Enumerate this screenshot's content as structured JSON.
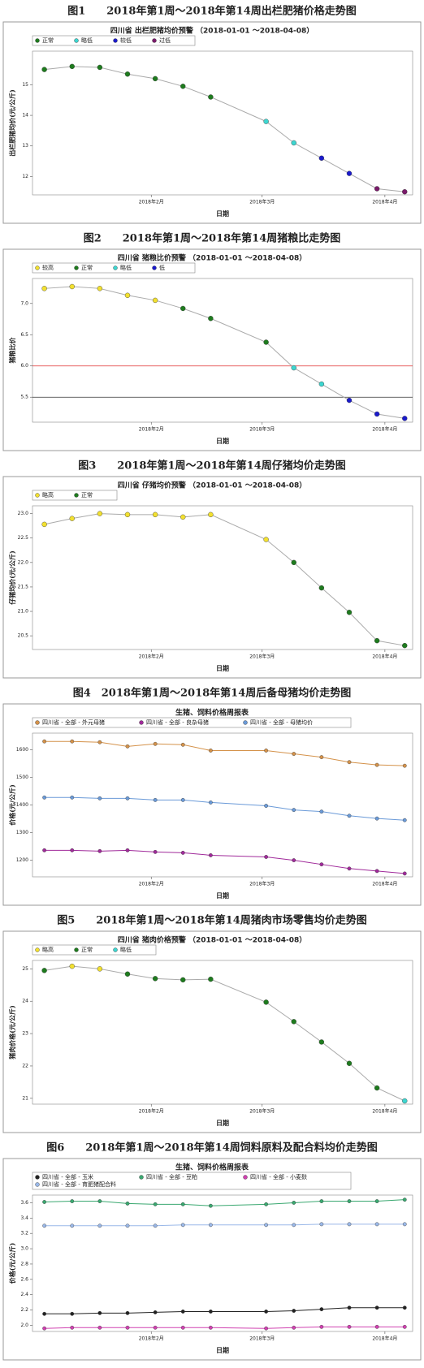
{
  "chart_data": [
    {
      "type": "line",
      "caption": "图1　　2018年第1周～2018年第14周出栏肥猪价格走势图",
      "title": "四川省 出栏肥猪均价预警 （2018-01-01 ～2018-04-08）",
      "y_label": "出栏肥猪均价(元/公斤)",
      "x_label": "日期",
      "x": [
        5,
        12,
        19,
        26,
        33,
        40,
        47,
        61,
        68,
        75,
        82,
        89,
        96
      ],
      "xlim": [
        2,
        98
      ],
      "xticks": [
        {
          "value": 32,
          "label": "2018年2月"
        },
        {
          "value": 60,
          "label": "2018年3月"
        },
        {
          "value": 91,
          "label": "2018年4月"
        }
      ],
      "ylim": [
        11.4,
        16.1
      ],
      "yticks": [
        12,
        13,
        14,
        15
      ],
      "legend": [
        {
          "name": "正常",
          "color": "#1e7b1e"
        },
        {
          "name": "略低",
          "color": "#3dd6d0"
        },
        {
          "name": "较低",
          "color": "#1a1acc"
        },
        {
          "name": "过低",
          "color": "#7a1a6a"
        }
      ],
      "series": [
        {
          "color": "#aaaaaa",
          "values": [
            15.5,
            15.6,
            15.57,
            15.35,
            15.2,
            14.95,
            14.6,
            13.8,
            13.1,
            12.6,
            12.1,
            11.6,
            11.5
          ],
          "point_colors": [
            "#1e7b1e",
            "#1e7b1e",
            "#1e7b1e",
            "#1e7b1e",
            "#1e7b1e",
            "#1e7b1e",
            "#1e7b1e",
            "#3dd6d0",
            "#3dd6d0",
            "#1a1acc",
            "#1a1acc",
            "#7a1a6a",
            "#7a1a6a"
          ]
        }
      ]
    },
    {
      "type": "line",
      "caption": "图2　　2018年第1周～2018年第14周猪粮比走势图",
      "title": "四川省 猪粮比价预警 （2018-01-01 ～2018-04-08）",
      "y_label": "猪粮比价",
      "x_label": "日期",
      "x": [
        5,
        12,
        19,
        26,
        33,
        40,
        47,
        61,
        68,
        75,
        82,
        89,
        96
      ],
      "xlim": [
        2,
        98
      ],
      "xticks": [
        {
          "value": 32,
          "label": "2018年2月"
        },
        {
          "value": 60,
          "label": "2018年3月"
        },
        {
          "value": 91,
          "label": "2018年4月"
        }
      ],
      "ylim": [
        5.1,
        7.4
      ],
      "yticks": [
        5.5,
        {
          "value": 6,
          "label": "6.0"
        },
        6.5,
        {
          "value": 7,
          "label": "7.0"
        }
      ],
      "reference_lines": [
        {
          "value": 6,
          "color": "#e03030"
        },
        {
          "value": 5.5,
          "color": "#333333"
        }
      ],
      "legend": [
        {
          "name": "较高",
          "color": "#f2e030"
        },
        {
          "name": "正常",
          "color": "#1e7b1e"
        },
        {
          "name": "略低",
          "color": "#3dd6d0"
        },
        {
          "name": "低",
          "color": "#1a1acc"
        }
      ],
      "series": [
        {
          "color": "#aaaaaa",
          "values": [
            7.24,
            7.27,
            7.24,
            7.13,
            7.05,
            6.92,
            6.76,
            6.38,
            5.97,
            5.71,
            5.45,
            5.23,
            5.16
          ],
          "point_colors": [
            "#f2e030",
            "#f2e030",
            "#f2e030",
            "#f2e030",
            "#f2e030",
            "#1e7b1e",
            "#1e7b1e",
            "#1e7b1e",
            "#3dd6d0",
            "#3dd6d0",
            "#1a1acc",
            "#1a1acc",
            "#1a1acc"
          ]
        }
      ]
    },
    {
      "type": "line",
      "caption": "图3　　2018年第1周～2018年第14周仔猪均价走势图",
      "title": "四川省 仔猪均价预警 （2018-01-01 ～2018-04-08）",
      "y_label": "仔猪均价(元/公斤)",
      "x_label": "日期",
      "x": [
        5,
        12,
        19,
        26,
        33,
        40,
        47,
        61,
        68,
        75,
        82,
        89,
        96
      ],
      "xlim": [
        2,
        98
      ],
      "xticks": [
        {
          "value": 32,
          "label": "2018年2月"
        },
        {
          "value": 60,
          "label": "2018年3月"
        },
        {
          "value": 91,
          "label": "2018年4月"
        }
      ],
      "ylim": [
        20.22,
        23.16
      ],
      "yticks": [
        20.5,
        {
          "value": 21,
          "label": "21.0"
        },
        21.5,
        {
          "value": 22,
          "label": "22.0"
        },
        22.5,
        {
          "value": 23,
          "label": "23.0"
        }
      ],
      "legend": [
        {
          "name": "略高",
          "color": "#f2e030"
        },
        {
          "name": "正常",
          "color": "#1e7b1e"
        }
      ],
      "series": [
        {
          "color": "#aaaaaa",
          "values": [
            22.78,
            22.9,
            23.0,
            22.98,
            22.98,
            22.93,
            22.98,
            22.47,
            22.0,
            21.48,
            20.98,
            20.4,
            20.3
          ],
          "point_colors": [
            "#f2e030",
            "#f2e030",
            "#f2e030",
            "#f2e030",
            "#f2e030",
            "#f2e030",
            "#f2e030",
            "#f2e030",
            "#1e7b1e",
            "#1e7b1e",
            "#1e7b1e",
            "#1e7b1e",
            "#1e7b1e"
          ]
        }
      ]
    },
    {
      "type": "line",
      "caption": "图4　2018年第1周～2018年第14周后备母猪均价走势图",
      "title": "生猪、饲料价格周报表",
      "y_label": "价格(元/公斤)",
      "x_label": "日期",
      "x": [
        5,
        12,
        19,
        26,
        33,
        40,
        47,
        61,
        68,
        75,
        82,
        89,
        96
      ],
      "xlim": [
        2,
        98
      ],
      "xticks": [
        {
          "value": 32,
          "label": "2018年2月"
        },
        {
          "value": 60,
          "label": "2018年3月"
        },
        {
          "value": 91,
          "label": "2018年4月"
        }
      ],
      "ylim": [
        1140,
        1660
      ],
      "yticks": [
        1200,
        1300,
        1400,
        1500,
        1600
      ],
      "series": [
        {
          "name": "四川省 - 全部 - 外元母猪",
          "color": "#d4924a",
          "values": [
            1630,
            1630,
            1627,
            1612,
            1621,
            1618,
            1597,
            1597,
            1585,
            1573,
            1555,
            1545,
            1542
          ]
        },
        {
          "name": "四川省 - 全部 - 良杂母猪",
          "color": "#a02a9a",
          "values": [
            1236,
            1236,
            1233,
            1236,
            1230,
            1227,
            1218,
            1212,
            1200,
            1185,
            1170,
            1161,
            1152
          ]
        },
        {
          "name": "四川省 - 全部 - 母猪均价",
          "color": "#6a9ad8",
          "values": [
            1427,
            1427,
            1424,
            1424,
            1418,
            1418,
            1409,
            1397,
            1382,
            1376,
            1361,
            1351,
            1345
          ]
        }
      ]
    },
    {
      "type": "line",
      "caption": "图5　　2018年第1周～2018年第14周猪肉市场零售均价走势图",
      "title": "四川省 猪肉价格预警 （2018-01-01 ～2018-04-08）",
      "y_label": "猪肉价格(元/公斤)",
      "x_label": "日期",
      "x": [
        5,
        12,
        19,
        26,
        33,
        40,
        47,
        61,
        68,
        75,
        82,
        89,
        96
      ],
      "xlim": [
        2,
        98
      ],
      "xticks": [
        {
          "value": 32,
          "label": "2018年2月"
        },
        {
          "value": 60,
          "label": "2018年3月"
        },
        {
          "value": 91,
          "label": "2018年4月"
        }
      ],
      "ylim": [
        20.82,
        25.26
      ],
      "yticks": [
        21,
        22,
        23,
        24,
        25
      ],
      "legend": [
        {
          "name": "略高",
          "color": "#f2e030"
        },
        {
          "name": "正常",
          "color": "#1e7b1e"
        },
        {
          "name": "略低",
          "color": "#3dd6d0"
        }
      ],
      "series": [
        {
          "color": "#aaaaaa",
          "values": [
            24.95,
            25.08,
            25.0,
            24.84,
            24.7,
            24.66,
            24.68,
            23.97,
            23.37,
            22.74,
            22.08,
            21.32,
            20.92
          ],
          "point_colors": [
            "#1e7b1e",
            "#f2e030",
            "#f2e030",
            "#1e7b1e",
            "#1e7b1e",
            "#1e7b1e",
            "#1e7b1e",
            "#1e7b1e",
            "#1e7b1e",
            "#1e7b1e",
            "#1e7b1e",
            "#1e7b1e",
            "#3dd6d0"
          ]
        }
      ]
    },
    {
      "type": "line",
      "caption": "图6　　2018年第1周～2018年第14周饲料原料及配合料均价走势图",
      "title": "生猪、饲料价格周报表",
      "y_label": "价格(元/公斤)",
      "x_label": "日期",
      "x": [
        5,
        12,
        19,
        26,
        33,
        40,
        47,
        61,
        68,
        75,
        82,
        89,
        96
      ],
      "xlim": [
        2,
        98
      ],
      "xticks": [
        {
          "value": 32,
          "label": "2018年2月"
        },
        {
          "value": 60,
          "label": "2018年3月"
        },
        {
          "value": 91,
          "label": "2018年4月"
        }
      ],
      "ylim": [
        1.92,
        3.7
      ],
      "yticks": [
        {
          "value": 2,
          "label": "2.0"
        },
        2.2,
        2.4,
        2.6,
        2.8,
        {
          "value": 3,
          "label": "3.0"
        },
        3.2,
        3.4,
        3.6
      ],
      "series": [
        {
          "name": "四川省 - 全部 - 玉米",
          "color": "#222222",
          "values": [
            2.15,
            2.15,
            2.16,
            2.16,
            2.17,
            2.18,
            2.18,
            2.18,
            2.19,
            2.21,
            2.23,
            2.23,
            2.23
          ]
        },
        {
          "name": "四川省 - 全部 - 豆粕",
          "color": "#3aa870",
          "values": [
            3.61,
            3.62,
            3.62,
            3.59,
            3.58,
            3.58,
            3.56,
            3.58,
            3.6,
            3.62,
            3.62,
            3.62,
            3.64
          ]
        },
        {
          "name": "四川省 - 全部 - 小麦麸",
          "color": "#d040b0",
          "values": [
            1.96,
            1.97,
            1.97,
            1.97,
            1.97,
            1.97,
            1.97,
            1.96,
            1.97,
            1.98,
            1.98,
            1.98,
            1.98
          ]
        },
        {
          "name": "四川省 - 全部 - 育肥猪配合料",
          "color": "#9ab8e8",
          "values": [
            3.3,
            3.3,
            3.3,
            3.3,
            3.3,
            3.31,
            3.31,
            3.31,
            3.31,
            3.32,
            3.32,
            3.32,
            3.32
          ]
        }
      ]
    }
  ]
}
